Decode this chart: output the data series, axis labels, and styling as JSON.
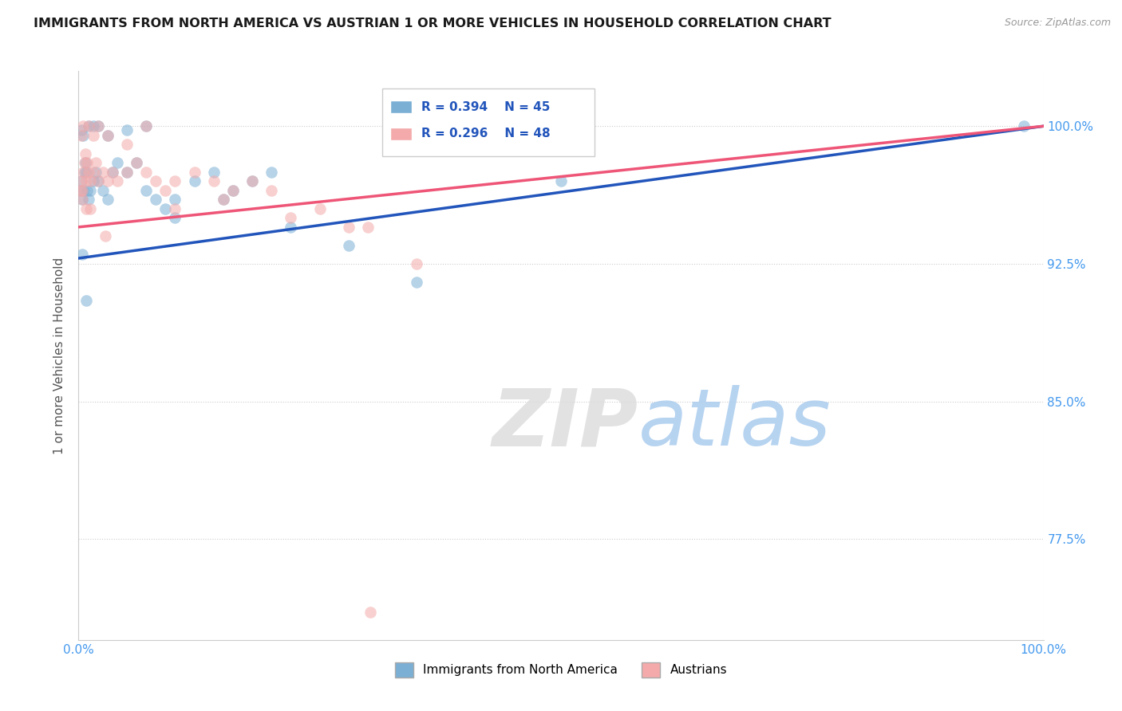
{
  "title": "IMMIGRANTS FROM NORTH AMERICA VS AUSTRIAN 1 OR MORE VEHICLES IN HOUSEHOLD CORRELATION CHART",
  "source": "Source: ZipAtlas.com",
  "ylabel": "1 or more Vehicles in Household",
  "xlim": [
    0.0,
    100.0
  ],
  "ylim": [
    72.0,
    103.0
  ],
  "ytick_labels": [
    "77.5%",
    "85.0%",
    "92.5%",
    "100.0%"
  ],
  "ytick_values": [
    77.5,
    85.0,
    92.5,
    100.0
  ],
  "xtick_labels": [
    "0.0%",
    "100.0%"
  ],
  "xtick_values": [
    0.0,
    100.0
  ],
  "blue_R": 0.394,
  "blue_N": 45,
  "pink_R": 0.296,
  "pink_N": 48,
  "blue_color": "#7BAFD4",
  "pink_color": "#F4AAAA",
  "blue_line_color": "#2255BB",
  "pink_line_color": "#EE5577",
  "legend_label_blue": "Immigrants from North America",
  "legend_label_pink": "Austrians",
  "watermark_zip": "ZIP",
  "watermark_atlas": "atlas",
  "blue_x": [
    0.2,
    0.3,
    0.4,
    0.5,
    0.6,
    0.7,
    0.8,
    0.9,
    1.0,
    1.2,
    1.5,
    1.8,
    2.0,
    2.5,
    3.0,
    3.5,
    4.0,
    5.0,
    6.0,
    7.0,
    8.0,
    9.0,
    10.0,
    12.0,
    14.0,
    16.0,
    18.0,
    20.0,
    0.3,
    0.5,
    1.0,
    1.5,
    2.0,
    3.0,
    5.0,
    7.0,
    10.0,
    15.0,
    22.0,
    28.0,
    35.0,
    50.0,
    0.4,
    0.8,
    98.0
  ],
  "blue_y": [
    96.5,
    97.0,
    96.0,
    96.5,
    97.5,
    98.0,
    97.5,
    96.5,
    96.0,
    96.5,
    97.0,
    97.5,
    97.0,
    96.5,
    96.0,
    97.5,
    98.0,
    97.5,
    98.0,
    96.5,
    96.0,
    95.5,
    96.0,
    97.0,
    97.5,
    96.5,
    97.0,
    97.5,
    99.8,
    99.5,
    100.0,
    100.0,
    100.0,
    99.5,
    99.8,
    100.0,
    95.0,
    96.0,
    94.5,
    93.5,
    91.5,
    97.0,
    93.0,
    90.5,
    100.0
  ],
  "pink_x": [
    0.2,
    0.3,
    0.4,
    0.5,
    0.6,
    0.7,
    0.8,
    0.9,
    1.0,
    1.2,
    1.5,
    1.8,
    2.0,
    2.5,
    3.0,
    3.5,
    4.0,
    5.0,
    6.0,
    7.0,
    8.0,
    9.0,
    10.0,
    12.0,
    14.0,
    16.0,
    18.0,
    0.3,
    0.5,
    1.0,
    1.5,
    2.0,
    3.0,
    5.0,
    7.0,
    10.0,
    15.0,
    22.0,
    28.0,
    35.0,
    0.4,
    0.8,
    1.2,
    2.8,
    20.0,
    25.0,
    30.0,
    30.2
  ],
  "pink_y": [
    96.5,
    97.0,
    96.5,
    97.5,
    98.0,
    98.5,
    97.0,
    98.0,
    97.5,
    97.0,
    97.5,
    98.0,
    97.0,
    97.5,
    97.0,
    97.5,
    97.0,
    97.5,
    98.0,
    97.5,
    97.0,
    96.5,
    97.0,
    97.5,
    97.0,
    96.5,
    97.0,
    99.5,
    100.0,
    100.0,
    99.5,
    100.0,
    99.5,
    99.0,
    100.0,
    95.5,
    96.0,
    95.0,
    94.5,
    92.5,
    96.0,
    95.5,
    95.5,
    94.0,
    96.5,
    95.5,
    94.5,
    73.5
  ],
  "blue_line_x0": 0.0,
  "blue_line_y0": 92.8,
  "blue_line_x1": 100.0,
  "blue_line_y1": 100.0,
  "pink_line_x0": 0.0,
  "pink_line_y0": 94.5,
  "pink_line_x1": 100.0,
  "pink_line_y1": 100.0
}
